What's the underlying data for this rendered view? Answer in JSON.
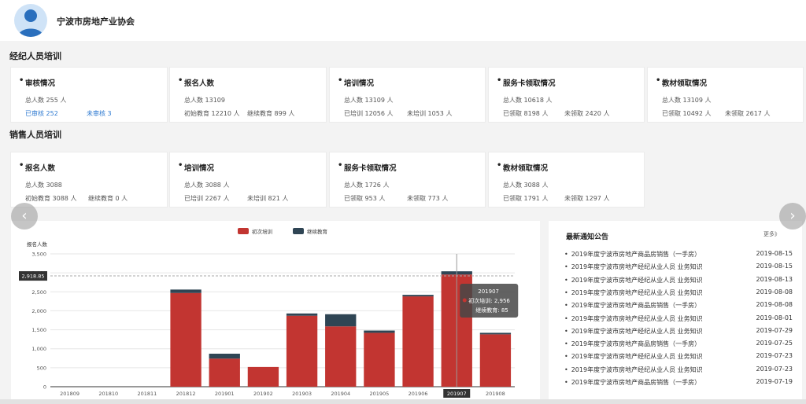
{
  "header": {
    "org_name": "宁波市房地产业协会",
    "avatar_icon": "user-avatar-icon"
  },
  "broker": {
    "title": "经纪人员培训",
    "cards": [
      {
        "title": "审核情况",
        "line1": "总人数 255 人",
        "a": "已审核 252",
        "b": "未审核 3"
      },
      {
        "title": "报名人数",
        "line1": "总人数 13109",
        "a": "初始教育 12210 人",
        "b": "继续教育 899 人"
      },
      {
        "title": "培训情况",
        "line1": "总人数 13109 人",
        "a": "已培训 12056 人",
        "b": "未培训 1053 人"
      },
      {
        "title": "服务卡领取情况",
        "line1": "总人数 10618 人",
        "a": "已领取 8198 人",
        "b": "未领取 2420 人"
      },
      {
        "title": "教材领取情况",
        "line1": "总人数 13109 人",
        "a": "已领取 10492 人",
        "b": "未领取 2617 人"
      }
    ]
  },
  "sales": {
    "title": "销售人员培训",
    "cards": [
      {
        "title": "报名人数",
        "line1": "总人数 3088",
        "a": "初始教育 3088 人",
        "b": "继续教育 0 人"
      },
      {
        "title": "培训情况",
        "line1": "总人数 3088 人",
        "a": "已培训 2267 人",
        "b": "未培训 821 人"
      },
      {
        "title": "服务卡领取情况",
        "line1": "总人数 1726 人",
        "a": "已领取 953 人",
        "b": "未领取 773 人"
      },
      {
        "title": "教材领取情况",
        "line1": "总人数 3088 人",
        "a": "已领取 1791 人",
        "b": "未领取 1297 人"
      }
    ]
  },
  "nav": {
    "prev": "‹",
    "next": "›"
  },
  "chart_data": {
    "type": "bar",
    "stacked": true,
    "ylabel": "报名人数",
    "ylim": [
      0,
      3500
    ],
    "yticks": [
      "0",
      "500",
      "1,000",
      "1,500",
      "2,000",
      "2,500",
      "3,000",
      "3,500"
    ],
    "categories": [
      "201809",
      "201810",
      "201811",
      "201812",
      "201901",
      "201902",
      "201903",
      "201904",
      "201905",
      "201906",
      "201907",
      "201908"
    ],
    "series": [
      {
        "name": "初次培训",
        "color": "#c23531",
        "values": [
          0,
          0,
          0,
          2470,
          740,
          520,
          1870,
          1590,
          1420,
          2380,
          2956,
          1380
        ]
      },
      {
        "name": "继续教育",
        "color": "#2f4554",
        "values": [
          0,
          0,
          0,
          90,
          130,
          0,
          60,
          320,
          60,
          40,
          85,
          40
        ]
      }
    ],
    "legend_position": "top",
    "grid": true,
    "axis_pointer_label": "2,918.85",
    "tooltip": {
      "title": "201907",
      "line1": "初次培训: 2,956",
      "line2": "继续教育: 85"
    },
    "highlight_category": "201907"
  },
  "notices": {
    "title": "最新通知公告",
    "more": "更多》",
    "items": [
      {
        "text": "2019年度宁波市房地产商品房销售（一手房）",
        "date": "2019-08-15"
      },
      {
        "text": "2019年度宁波市房地产经纪从业人员 业务知识",
        "date": "2019-08-15"
      },
      {
        "text": "2019年度宁波市房地产经纪从业人员 业务知识",
        "date": "2019-08-13"
      },
      {
        "text": "2019年度宁波市房地产经纪从业人员 业务知识",
        "date": "2019-08-08"
      },
      {
        "text": "2019年度宁波市房地产商品房销售（一手房）",
        "date": "2019-08-08"
      },
      {
        "text": "2019年度宁波市房地产经纪从业人员 业务知识",
        "date": "2019-08-01"
      },
      {
        "text": "2019年度宁波市房地产经纪从业人员 业务知识",
        "date": "2019-07-29"
      },
      {
        "text": "2019年度宁波市房地产商品房销售（一手房）",
        "date": "2019-07-25"
      },
      {
        "text": "2019年度宁波市房地产经纪从业人员 业务知识",
        "date": "2019-07-23"
      },
      {
        "text": "2019年度宁波市房地产经纪从业人员 业务知识",
        "date": "2019-07-23"
      },
      {
        "text": "2019年度宁波市房地产商品房销售（一手房）",
        "date": "2019-07-19"
      }
    ]
  }
}
